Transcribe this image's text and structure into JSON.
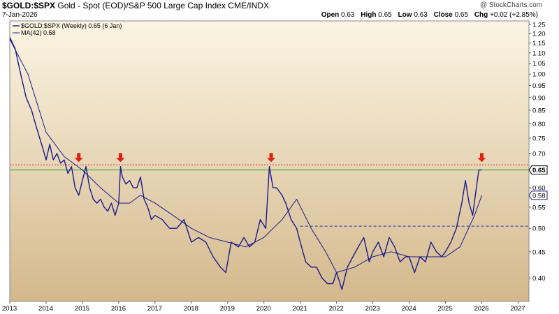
{
  "header": {
    "symbol": "$GOLD:$SPX",
    "description": "Gold - Spot (EOD)/S&P 500 Large Cap Index",
    "exchange": "CME/INDX",
    "date": "7-Jan-2026",
    "open_label": "Open",
    "open": "0.63",
    "high_label": "High",
    "high": "0.65",
    "low_label": "Low",
    "low": "0.63",
    "close_label": "Close",
    "close": "0.65",
    "chg_label": "Chg",
    "chg": "+0.02 (+2.85%)",
    "credit": "@ StockCharts.com"
  },
  "legend": {
    "series1": "$GOLD:$SPX (Weekly) 0.65 (6 Jan)",
    "series2": "MA(42) 0.58"
  },
  "last_value_tag": "0.65",
  "ma_value_tag": "0.58",
  "colors": {
    "series": "#1a1a8c",
    "bg_top": "#fbf5e3",
    "bg_bottom": "#d4b88c",
    "resistance": "#dd2222",
    "support": "#2233aa",
    "current": "#22aa22",
    "arrow": "#e02010"
  },
  "chart_data": {
    "type": "line",
    "x_ticks": [
      "2013",
      "2014",
      "2015",
      "2016",
      "2017",
      "2018",
      "2019",
      "2020",
      "2021",
      "2022",
      "2023",
      "2024",
      "2025",
      "2026",
      "2027"
    ],
    "y_ticks": [
      "0.40",
      "0.45",
      "0.50",
      "0.55",
      "0.60",
      "0.65",
      "0.70",
      "0.75",
      "0.80",
      "0.85",
      "0.90",
      "0.95",
      "1.00",
      "1.05",
      "1.10",
      "1.15",
      "1.20",
      "1.25"
    ],
    "ylim": [
      0.36,
      1.27
    ],
    "scale": "log",
    "grid": false,
    "legend_position": "top-left",
    "series": [
      {
        "name": "$GOLD:$SPX (Weekly) 0.65 (6 Jan)",
        "x": [
          2013.0,
          2013.15,
          2013.3,
          2013.45,
          2013.6,
          2013.75,
          2013.9,
          2014.0,
          2014.1,
          2014.2,
          2014.3,
          2014.4,
          2014.5,
          2014.6,
          2014.7,
          2014.8,
          2014.9,
          2015.0,
          2015.1,
          2015.2,
          2015.3,
          2015.4,
          2015.5,
          2015.6,
          2015.7,
          2015.8,
          2015.9,
          2016.0,
          2016.05,
          2016.1,
          2016.2,
          2016.3,
          2016.4,
          2016.5,
          2016.6,
          2016.7,
          2016.8,
          2016.9,
          2017.0,
          2017.2,
          2017.4,
          2017.6,
          2017.8,
          2018.0,
          2018.2,
          2018.4,
          2018.6,
          2018.8,
          2018.95,
          2019.1,
          2019.3,
          2019.45,
          2019.6,
          2019.75,
          2019.9,
          2020.05,
          2020.15,
          2020.25,
          2020.35,
          2020.5,
          2020.6,
          2020.75,
          2020.9,
          2021.0,
          2021.15,
          2021.3,
          2021.45,
          2021.6,
          2021.75,
          2021.9,
          2022.0,
          2022.15,
          2022.3,
          2022.45,
          2022.6,
          2022.75,
          2022.9,
          2023.0,
          2023.15,
          2023.3,
          2023.45,
          2023.6,
          2023.75,
          2023.9,
          2024.0,
          2024.15,
          2024.3,
          2024.45,
          2024.6,
          2024.75,
          2024.9,
          2025.0,
          2025.15,
          2025.3,
          2025.45,
          2025.55,
          2025.65,
          2025.75,
          2025.85,
          2025.92,
          2026.0
        ],
        "values": [
          1.18,
          1.12,
          1.0,
          0.9,
          0.85,
          0.78,
          0.72,
          0.68,
          0.73,
          0.68,
          0.7,
          0.67,
          0.68,
          0.64,
          0.66,
          0.6,
          0.58,
          0.62,
          0.66,
          0.6,
          0.57,
          0.56,
          0.57,
          0.55,
          0.54,
          0.56,
          0.53,
          0.56,
          0.66,
          0.63,
          0.61,
          0.62,
          0.6,
          0.6,
          0.63,
          0.57,
          0.55,
          0.52,
          0.53,
          0.52,
          0.5,
          0.5,
          0.52,
          0.47,
          0.48,
          0.47,
          0.44,
          0.42,
          0.41,
          0.47,
          0.46,
          0.48,
          0.46,
          0.47,
          0.52,
          0.5,
          0.66,
          0.6,
          0.6,
          0.58,
          0.56,
          0.52,
          0.5,
          0.47,
          0.43,
          0.42,
          0.42,
          0.4,
          0.39,
          0.39,
          0.41,
          0.38,
          0.42,
          0.44,
          0.46,
          0.48,
          0.43,
          0.45,
          0.47,
          0.44,
          0.48,
          0.46,
          0.43,
          0.44,
          0.44,
          0.41,
          0.44,
          0.43,
          0.47,
          0.45,
          0.44,
          0.45,
          0.47,
          0.5,
          0.56,
          0.62,
          0.56,
          0.53,
          0.6,
          0.65,
          0.65
        ]
      },
      {
        "name": "MA(42) 0.58",
        "x": [
          2013.0,
          2013.5,
          2014.0,
          2014.5,
          2015.0,
          2015.5,
          2016.0,
          2016.3,
          2016.6,
          2017.0,
          2017.5,
          2018.0,
          2018.5,
          2019.0,
          2019.5,
          2020.0,
          2020.5,
          2020.9,
          2021.3,
          2021.7,
          2022.0,
          2022.5,
          2023.0,
          2023.5,
          2024.0,
          2024.5,
          2025.0,
          2025.4,
          2025.8,
          2026.0
        ],
        "values": [
          1.17,
          1.0,
          0.77,
          0.69,
          0.65,
          0.6,
          0.56,
          0.56,
          0.58,
          0.56,
          0.53,
          0.5,
          0.48,
          0.47,
          0.46,
          0.48,
          0.52,
          0.57,
          0.5,
          0.45,
          0.41,
          0.42,
          0.44,
          0.45,
          0.44,
          0.44,
          0.44,
          0.46,
          0.53,
          0.58
        ]
      }
    ],
    "reference_lines": [
      {
        "y": 0.665,
        "style": "dotted",
        "color": "red"
      },
      {
        "y": 0.65,
        "style": "solid",
        "color": "green"
      },
      {
        "y": 0.505,
        "style": "dashed",
        "color": "blue",
        "x_start": 2021.0
      }
    ],
    "arrows": [
      2014.9,
      2016.05,
      2020.2,
      2026.0
    ]
  }
}
